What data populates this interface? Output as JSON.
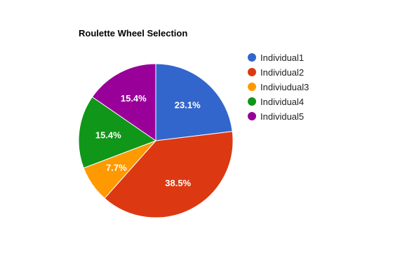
{
  "chart_data": {
    "type": "pie",
    "title": "Roulette Wheel Selection",
    "legend_position": "right",
    "slices": [
      {
        "label": "Individual1",
        "value": 23.1,
        "value_label": "23.1%",
        "color": "#3366cc"
      },
      {
        "label": "Individual2",
        "value": 38.5,
        "value_label": "38.5%",
        "color": "#dc3912"
      },
      {
        "label": "Indiviudual3",
        "value": 7.7,
        "value_label": "7.7%",
        "color": "#ff9900"
      },
      {
        "label": "Individual4",
        "value": 15.4,
        "value_label": "15.4%",
        "color": "#109618"
      },
      {
        "label": "Individual5",
        "value": 15.4,
        "value_label": "15.4%",
        "color": "#990099"
      }
    ]
  }
}
